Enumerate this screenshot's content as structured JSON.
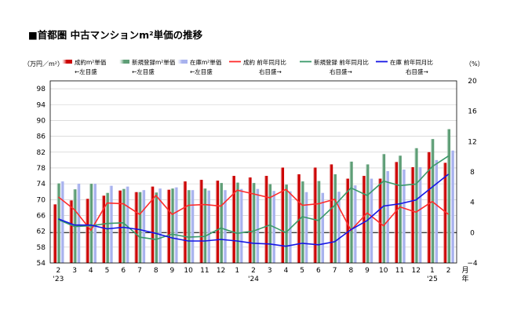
{
  "chart_data": {
    "type": "bar",
    "title": "■首都圏 中古マンションm²単価の推移",
    "left_axis_unit": "（万円／m²）",
    "right_axis_unit": "（%）",
    "x_axis_unit": "月\n年",
    "y_left": {
      "min": 54,
      "max": 100,
      "ticks": [
        54,
        58,
        62,
        66,
        70,
        74,
        78,
        82,
        86,
        90,
        94,
        98
      ]
    },
    "y_right": {
      "min": -4,
      "max": 20,
      "ticks": [
        -4,
        0,
        4,
        8,
        12,
        16,
        20
      ],
      "tick_labels": [
        "−4",
        "0",
        "4",
        "8",
        "12",
        "16",
        "20"
      ]
    },
    "categories": [
      "2",
      "3",
      "4",
      "5",
      "6",
      "7",
      "8",
      "9",
      "10",
      "11",
      "12",
      "1",
      "2",
      "3",
      "4",
      "5",
      "6",
      "7",
      "8",
      "9",
      "10",
      "11",
      "12",
      "1",
      "2"
    ],
    "category_year_labels": [
      {
        "index": 0,
        "label": "'23"
      },
      {
        "index": 12,
        "label": "'24"
      },
      {
        "index": 23,
        "label": "'25"
      }
    ],
    "bar_series": [
      {
        "name": "成約m²単価",
        "sub": "←左目盛",
        "color": "#cc0000",
        "values": [
          68.8,
          69.8,
          70.2,
          71.0,
          72.3,
          71.9,
          73.3,
          72.5,
          74.6,
          75.0,
          74.8,
          76.0,
          75.6,
          76.0,
          78.1,
          76.4,
          78.1,
          78.9,
          75.3,
          76.0,
          75.3,
          79.5,
          78.2,
          82.0,
          79.3
        ]
      },
      {
        "name": "新規登録m²単価",
        "sub": "←左目盛",
        "color": "#5e9e76",
        "values": [
          74.1,
          72.6,
          74.0,
          71.7,
          72.7,
          71.9,
          71.8,
          72.8,
          72.4,
          72.8,
          74.2,
          74.3,
          74.2,
          73.9,
          73.8,
          74.6,
          74.7,
          76.4,
          79.6,
          78.9,
          81.5,
          81.1,
          83.0,
          85.3,
          87.8
        ]
      },
      {
        "name": "在庫m²単価",
        "sub": "←左目盛",
        "color": "#a8b2ee",
        "values": [
          74.6,
          74.0,
          74.0,
          73.5,
          73.3,
          72.4,
          72.8,
          73.1,
          72.4,
          72.3,
          72.4,
          72.7,
          72.7,
          72.2,
          72.1,
          71.9,
          71.7,
          72.0,
          73.6,
          75.3,
          77.2,
          77.6,
          78.2,
          80.0,
          82.4
        ]
      }
    ],
    "line_series": [
      {
        "name": "成約 前年同月比",
        "sub": "右目盛→",
        "color": "#ff2b2b",
        "values": [
          4.7,
          3.0,
          0.3,
          3.9,
          3.8,
          2.4,
          4.9,
          2.4,
          3.6,
          3.7,
          3.5,
          5.6,
          5.1,
          4.6,
          5.7,
          3.6,
          3.8,
          4.4,
          0.3,
          2.6,
          0.9,
          3.4,
          2.7,
          4.1,
          2.4
        ]
      },
      {
        "name": "新規登録 前年同月比",
        "sub": "右目盛→",
        "color": "#3a9a6a",
        "values": [
          1.7,
          0.8,
          0.9,
          1.2,
          1.3,
          -0.6,
          -0.9,
          -0.2,
          -0.6,
          -0.5,
          0.6,
          -0.1,
          0.2,
          1.0,
          0.0,
          2.1,
          1.6,
          3.6,
          5.9,
          4.9,
          6.8,
          6.2,
          6.4,
          8.7,
          10.1
        ]
      },
      {
        "name": "在庫 前年同月比",
        "sub": "右目盛→",
        "color": "#1515e5",
        "values": [
          1.8,
          1.0,
          1.0,
          0.5,
          0.7,
          0.4,
          -0.1,
          -0.7,
          -1.1,
          -1.1,
          -0.9,
          -1.1,
          -1.4,
          -1.5,
          -1.8,
          -1.4,
          -1.6,
          -1.2,
          0.4,
          1.6,
          3.5,
          3.8,
          4.3,
          6.0,
          7.7
        ]
      }
    ],
    "legend_position": "top",
    "gridlines": "horizontal"
  }
}
